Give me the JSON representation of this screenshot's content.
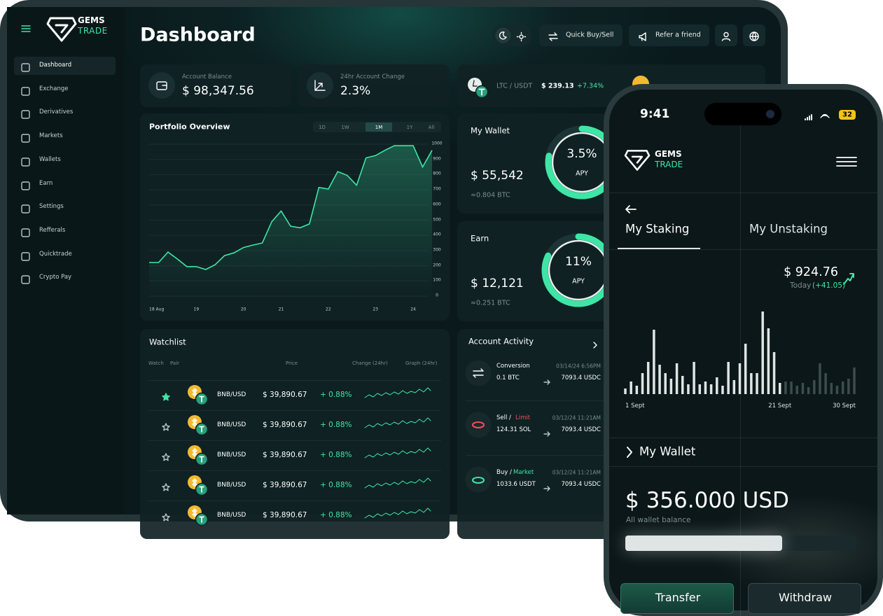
{
  "tablet": {
    "logo": {
      "line1": "GEMS",
      "line2": "TRADE"
    },
    "menu": [
      "Dashboard",
      "Exchange",
      "Derivatives",
      "Markets",
      "Wallets",
      "Earn",
      "Settings",
      "Refferals",
      "Quicktrade",
      "Crypto Pay"
    ],
    "title": "Dashboard",
    "header_buttons": [
      "Quick Buy/Sell",
      "Refer a friend"
    ],
    "cards": [
      {
        "label": "Account Balance",
        "value": "$ 98,347.56"
      },
      {
        "label": "24hr Account Change",
        "value": "2.3%"
      }
    ],
    "ticker": {
      "pair": "LTC / USDT",
      "price": "$ 239.13",
      "change": "+7.34%"
    },
    "portfolio": {
      "title": "Portfolio Overview",
      "ranges": [
        "1D",
        "1W",
        "1M",
        "1Y",
        "All"
      ],
      "active_range": 2,
      "chart_data": {
        "type": "line",
        "color": "#3ee6a6",
        "categories": [
          "18 Aug",
          null,
          null,
          null,
          null,
          "19",
          null,
          null,
          null,
          null,
          "20",
          null,
          null,
          null,
          "21",
          null,
          null,
          null,
          null,
          "22",
          null,
          null,
          null,
          null,
          "23",
          null,
          null,
          null,
          "24",
          null,
          null
        ],
        "values": [
          221,
          221,
          290,
          244,
          194,
          194,
          175,
          207,
          267,
          285,
          320,
          336,
          350,
          490,
          560,
          460,
          450,
          475,
          715,
          705,
          820,
          795,
          730,
          910,
          925,
          960,
          990,
          990,
          990,
          850,
          960
        ],
        "ylim": [
          0,
          1000
        ],
        "yticks": [
          0,
          100,
          200,
          300,
          400,
          500,
          600,
          700,
          800,
          900,
          1000
        ],
        "grid": true
      }
    },
    "wallet": {
      "title": "My Wallet",
      "value": "$ 55,542",
      "sub": "≈0.804 BTC",
      "apy": "3.5%",
      "apy_label": "APY"
    },
    "earn": {
      "title": "Earn",
      "value": "$ 12,121",
      "sub": "≈0.251 BTC",
      "apy": "11%",
      "apy_label": "APY"
    },
    "watchlist": {
      "title": "Watchlist",
      "columns": [
        "Watch",
        "Pair",
        "Price",
        "Change (24hr)",
        "Graph (24hr)"
      ],
      "rows": [
        {
          "watched": true,
          "pair": "BNB/USD",
          "price": "$ 39,890.67",
          "change": "+ 0.88%"
        },
        {
          "watched": false,
          "pair": "BNB/USD",
          "price": "$ 39,890.67",
          "change": "+ 0.88%"
        },
        {
          "watched": false,
          "pair": "BNB/USD",
          "price": "$ 39,890.67",
          "change": "+ 0.88%"
        },
        {
          "watched": false,
          "pair": "BNB/USD",
          "price": "$ 39,890.67",
          "change": "+ 0.88%"
        },
        {
          "watched": false,
          "pair": "BNB/USD",
          "price": "$ 39,890.67",
          "change": "+ 0.88%"
        }
      ]
    },
    "activity": {
      "title": "Account Activity",
      "items": [
        {
          "type": "Conversion",
          "amount": "0.1 BTC",
          "date": "03/14/24 6:56PM",
          "result": "7093.4 USDC"
        },
        {
          "type": "Sell /",
          "mode": "Limit",
          "mode_color": "#f0505a",
          "amount": "124.31 SOL",
          "date": "03/12/24 11:21AM",
          "result": "7093.4 USDC"
        },
        {
          "type": "Buy /",
          "mode": "Market",
          "mode_color": "#3ee6a6",
          "amount": "1033.6 USDT",
          "date": "03/12/24 11:21AM",
          "result": "7093.4 USDC"
        }
      ]
    }
  },
  "phone": {
    "time": "9:41",
    "battery": "32",
    "logo": {
      "line1": "GEMS",
      "line2": "TRADE"
    },
    "tabs": [
      "My Staking",
      "My Unstaking"
    ],
    "staking_value": "$ 924.76",
    "today": "Today",
    "today_change": "(+41.05)",
    "chart_data": {
      "type": "bar",
      "categories": [
        "1 Sept",
        null,
        null,
        null,
        null,
        null,
        null,
        null,
        null,
        null,
        null,
        null,
        null,
        null,
        null,
        null,
        null,
        null,
        null,
        null,
        null,
        null,
        null,
        null,
        null,
        null,
        null,
        "21 Sept",
        null,
        null,
        null,
        null,
        null,
        null,
        null,
        null,
        null,
        null,
        null,
        null,
        "30 Sept"
      ],
      "series": [
        {
          "color": "#dfe5e5",
          "values": [
            8,
            18,
            12,
            30,
            46,
            92,
            42,
            30,
            22,
            44,
            26,
            14,
            46,
            14,
            18,
            14,
            24,
            12,
            46,
            20,
            44,
            72,
            30,
            30,
            118,
            94,
            60,
            16,
            null,
            null,
            null,
            null,
            null,
            null,
            null,
            null,
            null,
            null,
            null,
            null,
            null
          ]
        },
        {
          "color": "#3d4c4e",
          "values": [
            null,
            null,
            null,
            null,
            null,
            null,
            null,
            null,
            null,
            null,
            null,
            null,
            null,
            null,
            null,
            null,
            null,
            null,
            null,
            null,
            null,
            null,
            null,
            null,
            null,
            null,
            null,
            null,
            18,
            18,
            12,
            16,
            10,
            20,
            44,
            30,
            16,
            12,
            18,
            22,
            38
          ]
        }
      ],
      "ylim": [
        0,
        120
      ]
    },
    "wallet_title": "My Wallet",
    "balance": "$ 356.000 USD",
    "balance_label": "All wallet balance",
    "buttons": [
      "Transfer",
      "Withdraw"
    ]
  }
}
